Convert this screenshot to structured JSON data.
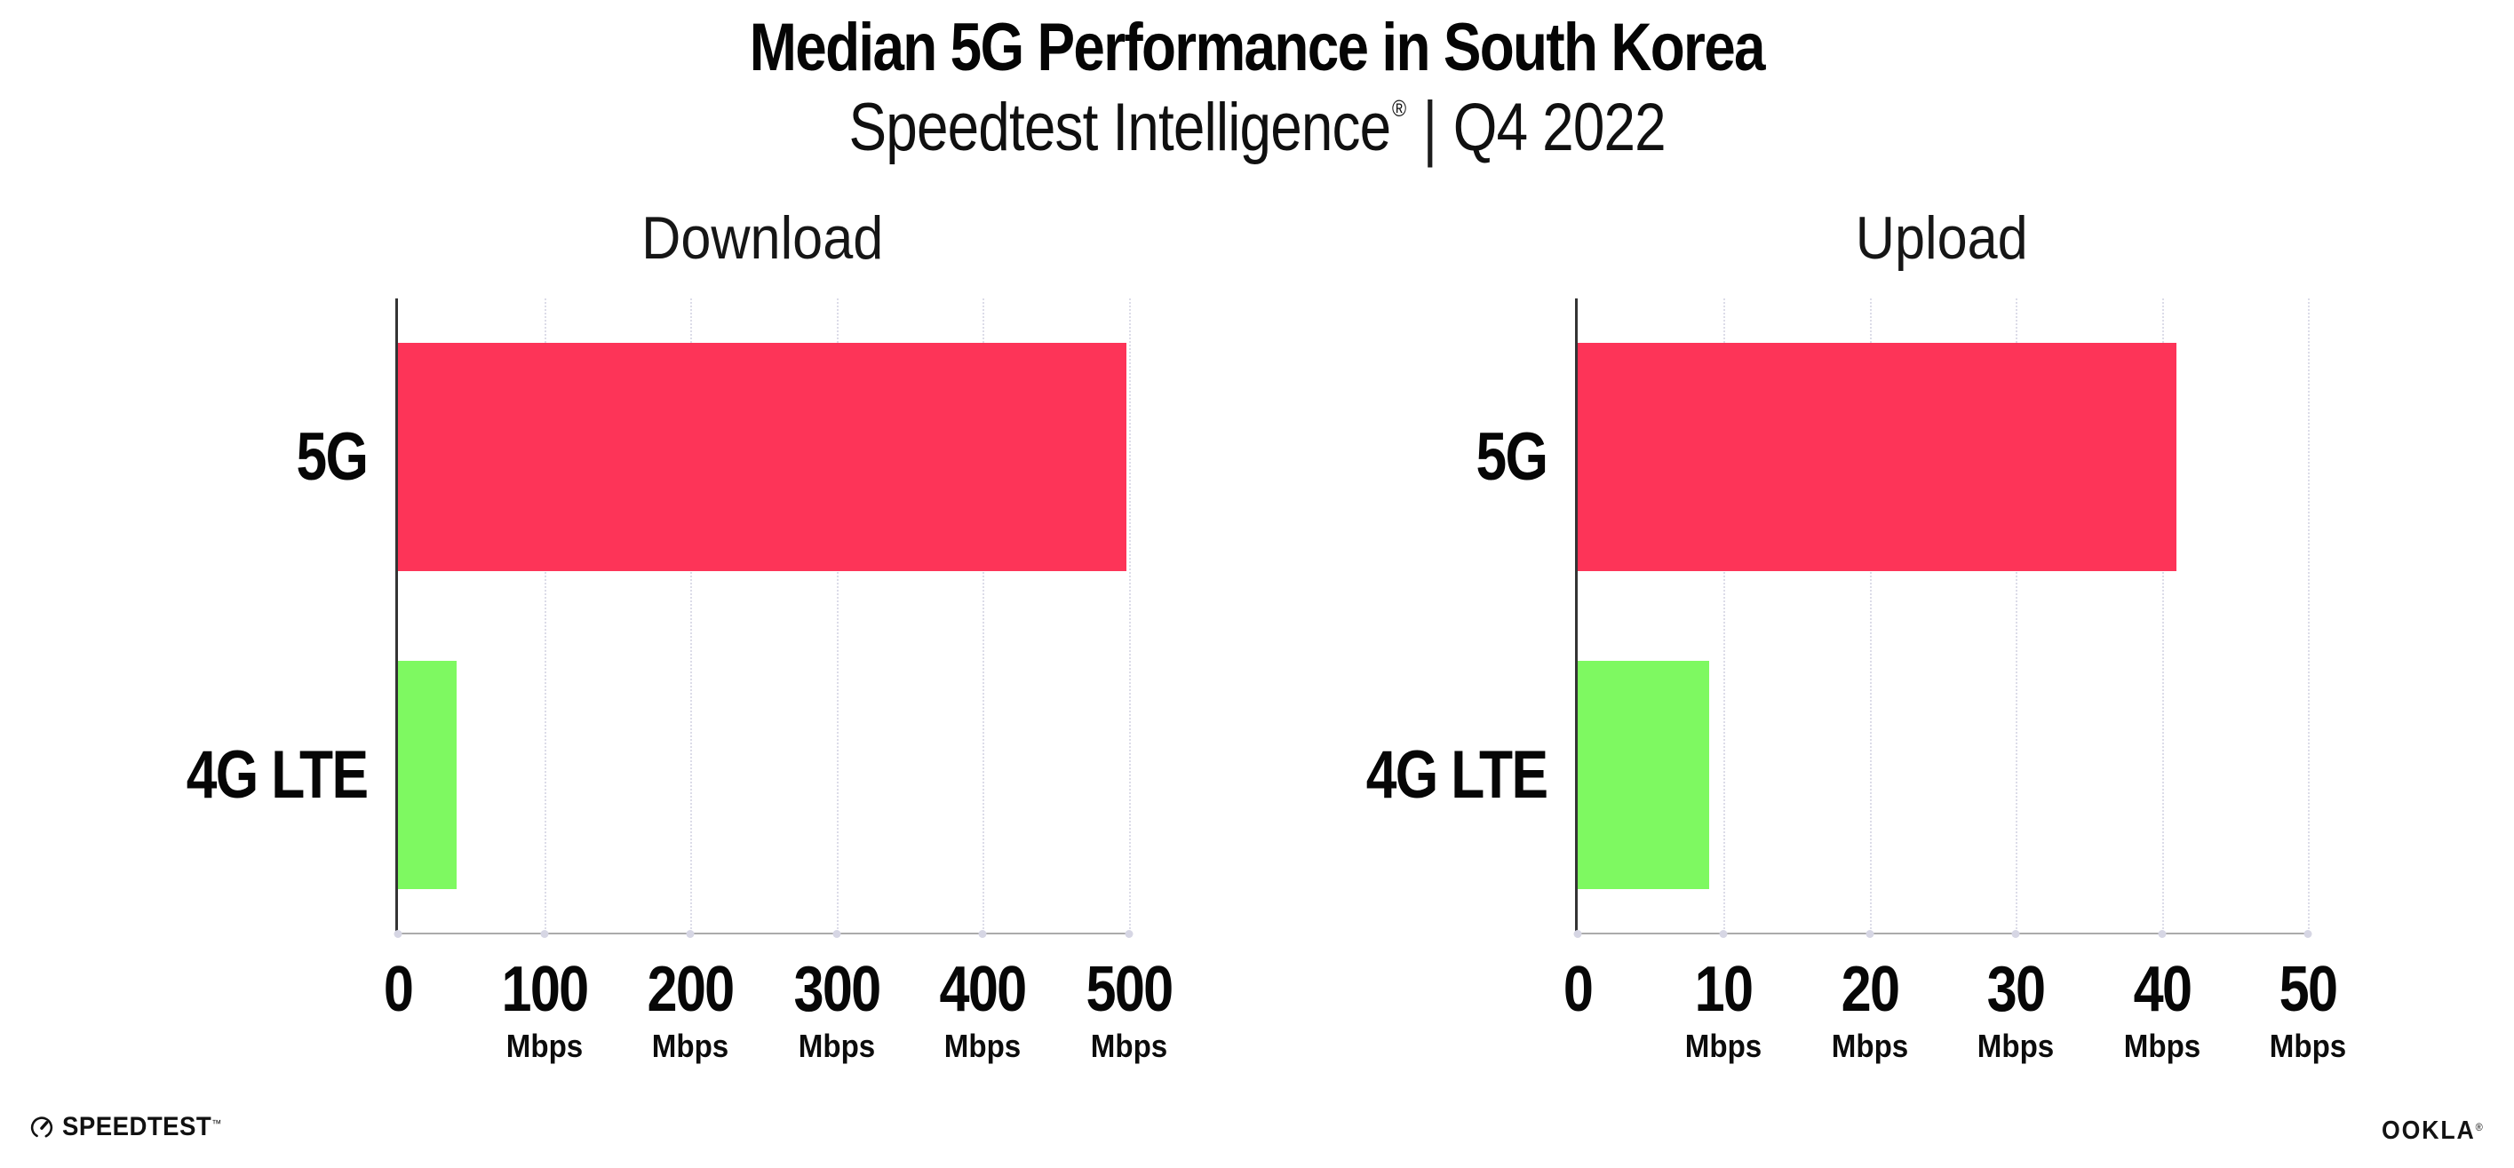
{
  "header": {
    "title": "Median 5G Performance in South Korea",
    "subtitle": {
      "brand": "Speedtest Intelligence",
      "reg": "®",
      "divider": "|",
      "period": "Q4 2022"
    }
  },
  "chart_data": [
    {
      "type": "bar",
      "orientation": "horizontal",
      "title": "Download",
      "categories": [
        "5G",
        "4G LTE"
      ],
      "values": [
        498,
        40
      ],
      "unit": "Mbps",
      "xlabel": "",
      "ylabel": "",
      "xlim": [
        0,
        500
      ],
      "xticks": [
        0,
        100,
        200,
        300,
        400,
        500
      ],
      "bar_colors": [
        "#FD3458",
        "#7EF961"
      ],
      "grid": "vertical-dotted",
      "legend": "none"
    },
    {
      "type": "bar",
      "orientation": "horizontal",
      "title": "Upload",
      "categories": [
        "5G",
        "4G LTE"
      ],
      "values": [
        41,
        9
      ],
      "unit": "Mbps",
      "xlabel": "",
      "ylabel": "",
      "xlim": [
        0,
        50
      ],
      "xticks": [
        0,
        10,
        20,
        30,
        40,
        50
      ],
      "bar_colors": [
        "#FD3458",
        "#7EF961"
      ],
      "grid": "vertical-dotted",
      "legend": "none"
    }
  ],
  "colors": {
    "bar_5g": "#FD3458",
    "bar_4g_lte": "#7EF961",
    "gridline": "#DCDCE8",
    "axis_y": "#343434",
    "axis_x": "#ABABAB",
    "text": "#050505"
  },
  "footer": {
    "speedtest": "SPEEDTEST",
    "speedtest_mark": "™",
    "ookla": "OOKLA",
    "ookla_mark": "®"
  }
}
